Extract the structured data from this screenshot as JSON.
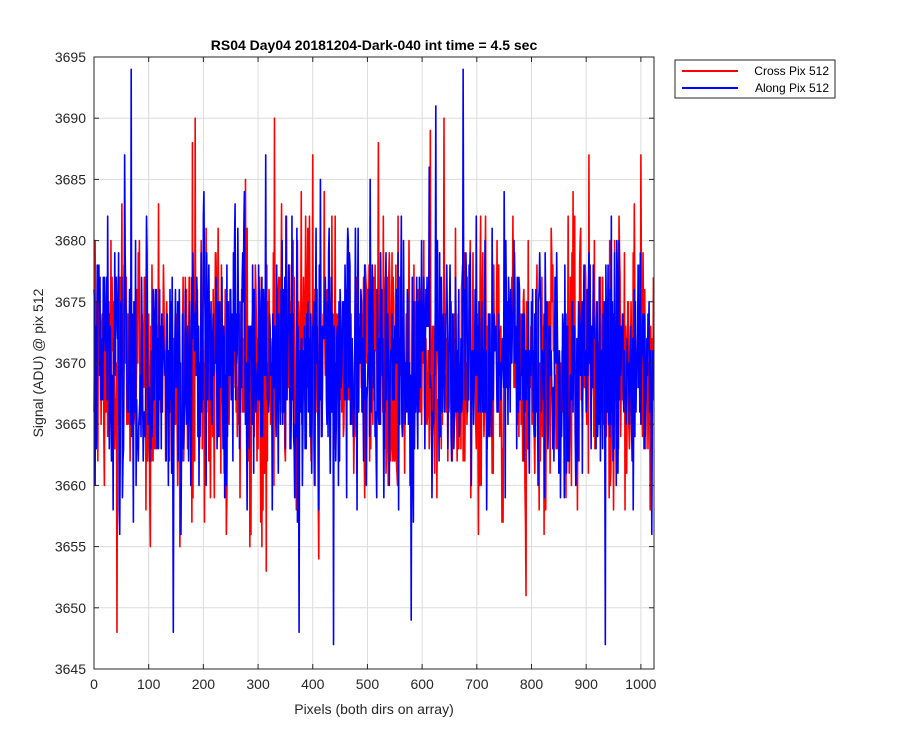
{
  "chart_data": {
    "type": "line",
    "title": "RS04 Day04 20181204-Dark-040 int time = 4.5 sec",
    "xlabel": "Pixels (both dirs on array)",
    "ylabel": "Signal (ADU) @ pix 512",
    "xlim": [
      0,
      1024
    ],
    "ylim": [
      3645,
      3695
    ],
    "xticks": [
      0,
      100,
      200,
      300,
      400,
      500,
      600,
      700,
      800,
      900,
      1000
    ],
    "yticks": [
      3645,
      3650,
      3655,
      3660,
      3665,
      3670,
      3675,
      3680,
      3685,
      3690,
      3695
    ],
    "grid": true,
    "legend_position": "outside-top-right",
    "series": [
      {
        "name": "Cross Pix 512",
        "color": "#ff0000",
        "n_points": 1024,
        "mean": 3670,
        "std": 5.5,
        "min": 3648,
        "max": 3690,
        "peaks": [
          [
            42,
            3648
          ],
          [
            180,
            3688
          ],
          [
            185,
            3690
          ],
          [
            330,
            3690
          ],
          [
            400,
            3687
          ],
          [
            520,
            3688
          ],
          [
            615,
            3689
          ],
          [
            640,
            3690
          ],
          [
            790,
            3651
          ],
          [
            905,
            3687
          ],
          [
            1000,
            3687
          ]
        ]
      },
      {
        "name": "Along Pix 512",
        "color": "#0000ff",
        "n_points": 1024,
        "mean": 3670,
        "std": 5.5,
        "min": 3647,
        "max": 3694,
        "peaks": [
          [
            68,
            3694
          ],
          [
            145,
            3648
          ],
          [
            375,
            3648
          ],
          [
            438,
            3647
          ],
          [
            580,
            3649
          ],
          [
            625,
            3691
          ],
          [
            675,
            3694
          ],
          [
            935,
            3647
          ],
          [
            1020,
            3656
          ]
        ]
      }
    ]
  }
}
